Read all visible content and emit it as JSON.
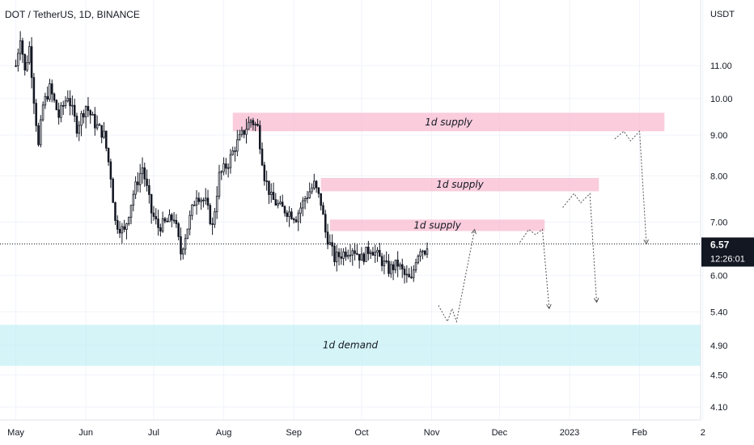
{
  "header": {
    "symbol_title": "DOT / TetherUS, 1D, BINANCE"
  },
  "price_axis": {
    "currency": "USDT"
  },
  "last_price": {
    "value": "6.57",
    "countdown": "12:26:01",
    "color": "#131722"
  },
  "colors": {
    "supply_zone": "#f8bbd0",
    "demand_zone": "#b2ebf2",
    "candle": "#131722",
    "grid": "#f0f3fa",
    "projection": "#555555"
  },
  "chart_data": {
    "type": "candlestick",
    "y_axis": {
      "scale": "log",
      "range": [
        3.95,
        13.3
      ],
      "ticks": [
        4.1,
        4.5,
        4.9,
        5.4,
        6.0,
        7.0,
        8.0,
        9.0,
        10.0,
        11.0
      ],
      "tick_labels": [
        "4.10",
        "4.50",
        "4.90",
        "5.40",
        "6.00",
        "7.00",
        "8.00",
        "9.00",
        "10.00",
        "11.00"
      ]
    },
    "x_axis": {
      "start": "2022-04-24",
      "end": "2023-02-28",
      "tick_dates": [
        "2022-05-01",
        "2022-06-01",
        "2022-07-01",
        "2022-08-01",
        "2022-09-01",
        "2022-10-01",
        "2022-11-01",
        "2022-12-01",
        "2023-01-01",
        "2023-02-01",
        "2023-03-01"
      ],
      "tick_labels": [
        "May",
        "Jun",
        "Jul",
        "Aug",
        "Sep",
        "Oct",
        "Nov",
        "Dec",
        "2023",
        "Feb",
        "2"
      ]
    },
    "price_anchors": [
      [
        "2022-05-01",
        11.0
      ],
      [
        "2022-05-03",
        12.0
      ],
      [
        "2022-05-05",
        10.8
      ],
      [
        "2022-05-07",
        11.6
      ],
      [
        "2022-05-09",
        10.0
      ],
      [
        "2022-05-11",
        8.7
      ],
      [
        "2022-05-13",
        9.8
      ],
      [
        "2022-05-16",
        10.3
      ],
      [
        "2022-05-20",
        9.5
      ],
      [
        "2022-05-24",
        10.1
      ],
      [
        "2022-05-28",
        9.2
      ],
      [
        "2022-06-01",
        9.8
      ],
      [
        "2022-06-05",
        9.3
      ],
      [
        "2022-06-09",
        9.0
      ],
      [
        "2022-06-12",
        8.0
      ],
      [
        "2022-06-14",
        7.0
      ],
      [
        "2022-06-18",
        6.8
      ],
      [
        "2022-06-22",
        7.6
      ],
      [
        "2022-06-26",
        8.2
      ],
      [
        "2022-06-30",
        7.2
      ],
      [
        "2022-07-03",
        6.9
      ],
      [
        "2022-07-07",
        7.0
      ],
      [
        "2022-07-10",
        7.1
      ],
      [
        "2022-07-13",
        6.4
      ],
      [
        "2022-07-16",
        6.9
      ],
      [
        "2022-07-20",
        7.6
      ],
      [
        "2022-07-24",
        7.4
      ],
      [
        "2022-07-27",
        6.9
      ],
      [
        "2022-07-30",
        8.0
      ],
      [
        "2022-08-03",
        8.3
      ],
      [
        "2022-08-06",
        8.7
      ],
      [
        "2022-08-10",
        9.1
      ],
      [
        "2022-08-13",
        9.4
      ],
      [
        "2022-08-16",
        9.2
      ],
      [
        "2022-08-19",
        8.0
      ],
      [
        "2022-08-22",
        7.5
      ],
      [
        "2022-08-26",
        7.3
      ],
      [
        "2022-08-30",
        7.2
      ],
      [
        "2022-09-02",
        7.1
      ],
      [
        "2022-09-06",
        7.5
      ],
      [
        "2022-09-10",
        7.8
      ],
      [
        "2022-09-13",
        7.4
      ],
      [
        "2022-09-15",
        6.8
      ],
      [
        "2022-09-19",
        6.3
      ],
      [
        "2022-09-23",
        6.4
      ],
      [
        "2022-09-27",
        6.5
      ],
      [
        "2022-10-01",
        6.3
      ],
      [
        "2022-10-05",
        6.5
      ],
      [
        "2022-10-09",
        6.3
      ],
      [
        "2022-10-13",
        6.1
      ],
      [
        "2022-10-17",
        6.2
      ],
      [
        "2022-10-20",
        6.0
      ],
      [
        "2022-10-23",
        5.9
      ],
      [
        "2022-10-25",
        6.3
      ],
      [
        "2022-10-27",
        6.5
      ],
      [
        "2022-10-29",
        6.45
      ],
      [
        "2022-10-30",
        6.57
      ]
    ],
    "zones": [
      {
        "label": "1d supply",
        "from": "2022-08-05",
        "to": "2023-02-12",
        "low": 9.1,
        "high": 9.6,
        "kind": "supply"
      },
      {
        "label": "1d supply",
        "from": "2022-09-13",
        "to": "2023-01-14",
        "low": 7.65,
        "high": 7.95,
        "kind": "supply"
      },
      {
        "label": "1d supply",
        "from": "2022-09-17",
        "to": "2022-12-21",
        "low": 6.82,
        "high": 7.05,
        "kind": "supply"
      },
      {
        "label": "1d demand",
        "from": "2022-04-24",
        "to": "2023-02-28",
        "low": 4.62,
        "high": 5.2,
        "kind": "demand"
      }
    ],
    "projections": [
      [
        [
          "2022-11-04",
          5.5
        ],
        [
          "2022-11-08",
          5.25
        ],
        [
          "2022-11-10",
          5.45
        ],
        [
          "2022-11-12",
          5.25
        ],
        [
          "2022-11-20",
          6.85
        ]
      ],
      [
        [
          "2022-12-10",
          6.6
        ],
        [
          "2022-12-14",
          6.85
        ],
        [
          "2022-12-17",
          6.75
        ],
        [
          "2022-12-20",
          6.85
        ],
        [
          "2022-12-23",
          5.45
        ]
      ],
      [
        [
          "2022-12-29",
          7.3
        ],
        [
          "2023-01-03",
          7.6
        ],
        [
          "2023-01-06",
          7.4
        ],
        [
          "2023-01-10",
          7.6
        ],
        [
          "2023-01-13",
          5.55
        ]
      ],
      [
        [
          "2023-01-21",
          8.9
        ],
        [
          "2023-01-25",
          9.1
        ],
        [
          "2023-01-28",
          8.85
        ],
        [
          "2023-02-01",
          9.1
        ],
        [
          "2023-02-04",
          6.57
        ]
      ]
    ]
  }
}
